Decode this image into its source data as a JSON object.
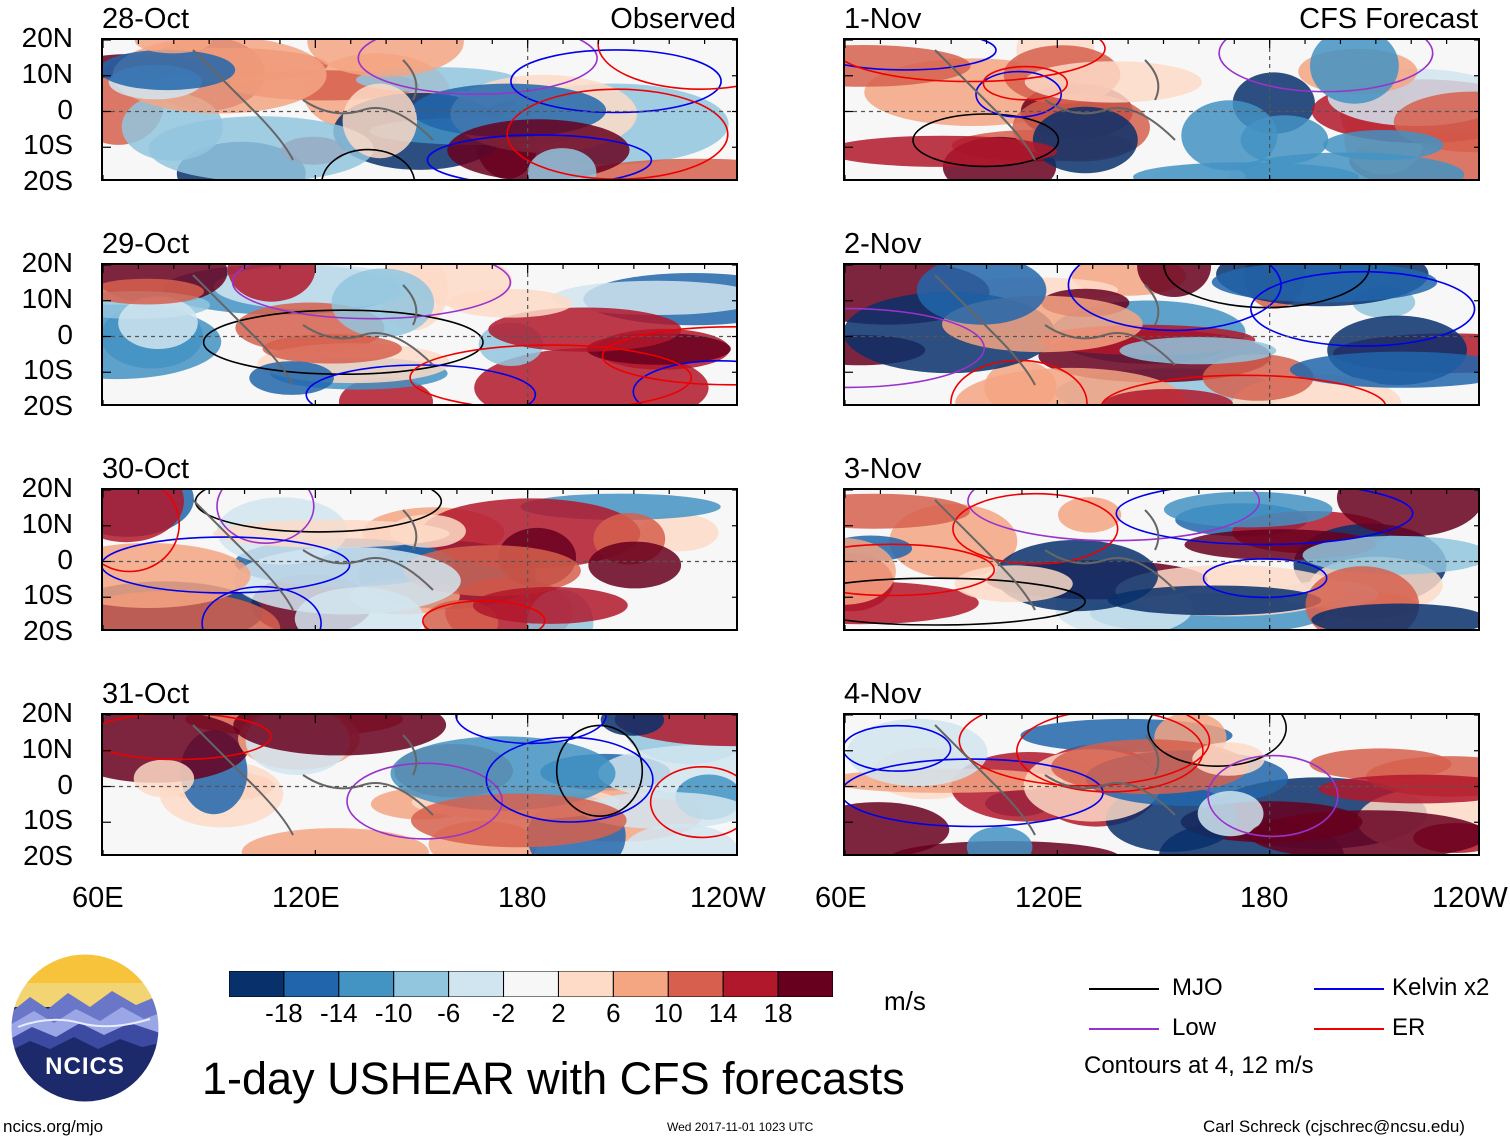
{
  "columns": [
    {
      "label": "Observed",
      "name": "observed"
    },
    {
      "label": "CFS Forecast",
      "name": "cfs-forecast"
    }
  ],
  "panels": [
    {
      "date": "28-Oct",
      "col": 0,
      "row": 0,
      "seed": 3
    },
    {
      "date": "29-Oct",
      "col": 0,
      "row": 1,
      "seed": 7
    },
    {
      "date": "30-Oct",
      "col": 0,
      "row": 2,
      "seed": 11
    },
    {
      "date": "31-Oct",
      "col": 0,
      "row": 3,
      "seed": 17
    },
    {
      "date": "1-Nov",
      "col": 1,
      "row": 0,
      "seed": 23
    },
    {
      "date": "2-Nov",
      "col": 1,
      "row": 1,
      "seed": 29
    },
    {
      "date": "3-Nov",
      "col": 1,
      "row": 2,
      "seed": 31
    },
    {
      "date": "4-Nov",
      "col": 1,
      "row": 3,
      "seed": 37
    }
  ],
  "y_axis_labels": [
    "20N",
    "10N",
    "0",
    "10S",
    "20S"
  ],
  "x_axis_labels": [
    "60E",
    "120E",
    "180",
    "120W"
  ],
  "colorbar": {
    "colors": [
      "#08306b",
      "#2166ac",
      "#4393c3",
      "#92c5de",
      "#d1e5f0",
      "#f7f7f7",
      "#fddbc7",
      "#f4a582",
      "#d6604d",
      "#b2182b",
      "#67001f"
    ],
    "labels": [
      "-18",
      "-14",
      "-10",
      "-6",
      "-2",
      "2",
      "6",
      "10",
      "14",
      "18"
    ],
    "units": "m/s"
  },
  "legend": {
    "items": [
      {
        "label": "MJO",
        "color": "#000000"
      },
      {
        "label": "Low",
        "color": "#9932cc"
      },
      {
        "label": "Kelvin x2",
        "color": "#0000ee"
      },
      {
        "label": "ER",
        "color": "#ee0000"
      }
    ],
    "contour_note": "Contours at 4, 12 m/s"
  },
  "title": "1-day USHEAR with CFS forecasts",
  "logo_text": "NCICS",
  "footer": {
    "url": "ncics.org/mjo",
    "timestamp": "Wed 2017-11-01 1023 UTC",
    "credit": "Carl Schreck (cjschrec@ncsu.edu)"
  }
}
